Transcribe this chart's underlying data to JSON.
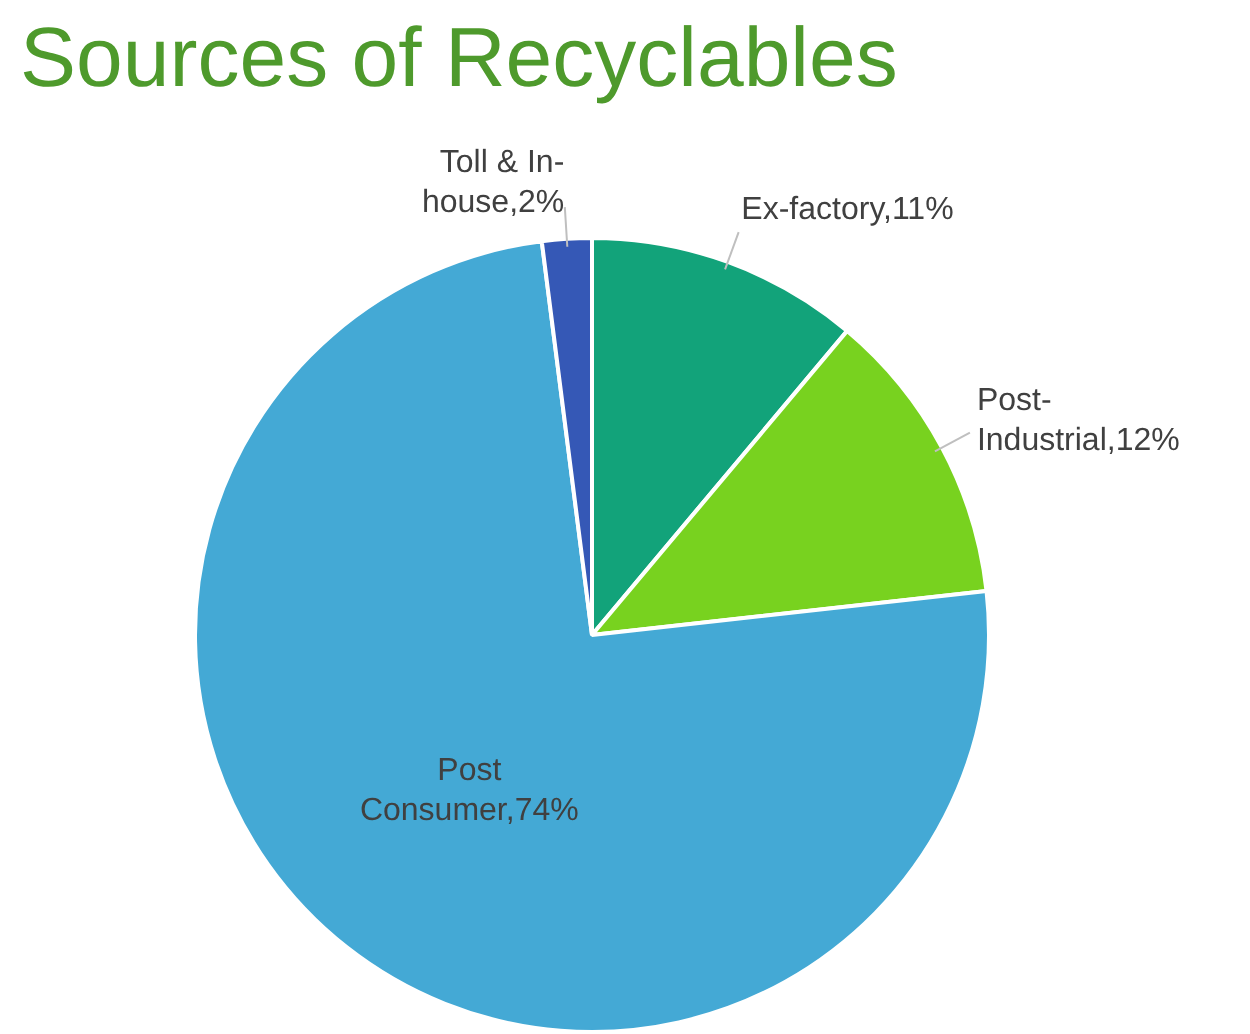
{
  "chart_data": {
    "type": "pie",
    "title": "Sources of Recyclables",
    "categories": [
      "Ex-factory",
      "Post-Industrial",
      "Post Consumer",
      "Toll & In-house"
    ],
    "values": [
      11,
      12,
      74,
      2
    ],
    "value_labels": [
      "11%",
      "12%",
      "74%",
      "2%"
    ],
    "colors": [
      "#12a37a",
      "#78d21f",
      "#44a9d5",
      "#3558b6"
    ],
    "legend": false
  }
}
